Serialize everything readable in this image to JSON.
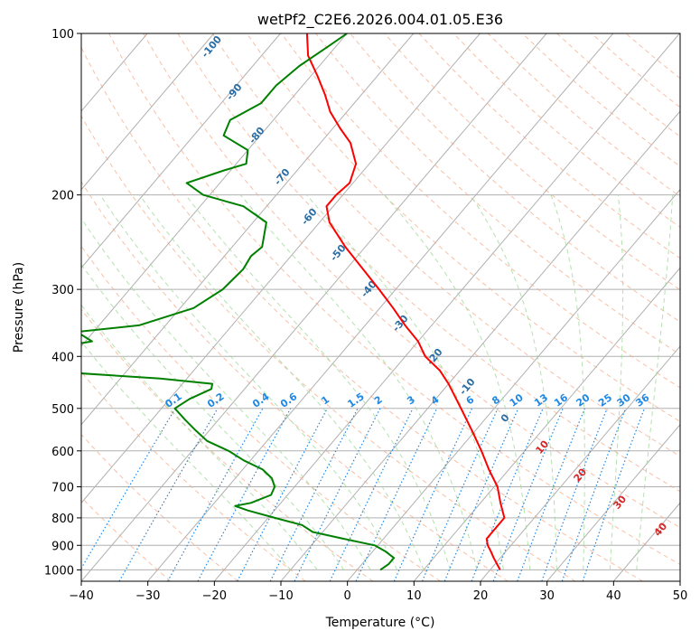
{
  "chart_data": {
    "type": "line",
    "subtype": "skew-t log-p",
    "title": "wetPf2_C2E6.2026.004.01.05.E36",
    "xlabel": "Temperature (°C)",
    "ylabel": "Pressure (hPa)",
    "xlim": [
      -40,
      50
    ],
    "ylim": [
      1050,
      100
    ],
    "y_scale": "log",
    "x_ticks": [
      "−40",
      "−30",
      "−20",
      "−10",
      "0",
      "10",
      "20",
      "30",
      "40",
      "50"
    ],
    "x_tick_values": [
      -40,
      -30,
      -20,
      -10,
      0,
      10,
      20,
      30,
      40,
      50
    ],
    "y_ticks": [
      "100",
      "200",
      "300",
      "400",
      "500",
      "600",
      "700",
      "800",
      "900",
      "1000"
    ],
    "y_tick_values": [
      100,
      200,
      300,
      400,
      500,
      600,
      700,
      800,
      900,
      1000
    ],
    "grid": true,
    "series": [
      {
        "role": "temperature",
        "color": "#ff0000",
        "p": [
          1000,
          950,
          925,
          900,
          875,
          850,
          800,
          750,
          700,
          650,
          600,
          550,
          500,
          450,
          425,
          400,
          375,
          350,
          325,
          300,
          275,
          250,
          225,
          210,
          200,
          190,
          175,
          160,
          150,
          140,
          130,
          120,
          110,
          100
        ],
        "t": [
          21.5,
          19,
          17.8,
          16.5,
          15.5,
          15.5,
          15.5,
          13,
          10.5,
          7,
          3.5,
          -0.5,
          -5,
          -10,
          -13,
          -17,
          -20,
          -24,
          -28,
          -32.5,
          -37.5,
          -43,
          -48.5,
          -51,
          -51,
          -50.5,
          -52,
          -55.5,
          -59,
          -62.5,
          -65.5,
          -69,
          -73,
          -76
        ]
      },
      {
        "role": "dewpoint",
        "color": "#008000",
        "p": [
          1000,
          975,
          950,
          925,
          900,
          875,
          850,
          825,
          800,
          775,
          760,
          750,
          725,
          700,
          675,
          650,
          625,
          600,
          575,
          550,
          525,
          500,
          480,
          460,
          450,
          440,
          420,
          400,
          390,
          375,
          360,
          350,
          325,
          300,
          275,
          260,
          250,
          225,
          210,
          200,
          190,
          180,
          175,
          165,
          155,
          145,
          135,
          125,
          115,
          105,
          100
        ],
        "t": [
          3.5,
          4,
          4,
          2,
          -0.5,
          -6,
          -11.5,
          -14,
          -19,
          -24,
          -26.5,
          -24.5,
          -22.5,
          -23,
          -24.5,
          -27,
          -31,
          -34.5,
          -39,
          -42,
          -45,
          -48,
          -47,
          -45,
          -45.5,
          -54,
          -80,
          -80,
          -76,
          -69,
          -72.5,
          -64,
          -58,
          -56,
          -55.5,
          -56,
          -55.5,
          -58,
          -63.5,
          -71,
          -75,
          -71,
          -68.5,
          -70,
          -75.5,
          -76.5,
          -74,
          -74,
          -73,
          -71,
          -70
        ]
      }
    ],
    "mixing_ratio_labels": [
      "0.1",
      "0.2",
      "0.4",
      "0.6",
      "1",
      "1.5",
      "2",
      "3",
      "4",
      "6",
      "8",
      "10",
      "13",
      "16",
      "20",
      "25",
      "30",
      "36"
    ],
    "mixing_ratio_values": [
      0.1,
      0.2,
      0.4,
      0.6,
      1,
      1.5,
      2,
      3,
      4,
      6,
      8,
      10,
      13,
      16,
      20,
      25,
      30,
      36
    ],
    "dry_adiabat_labels": [
      "-100",
      "-90",
      "-80",
      "-70",
      "-60",
      "-50",
      "-40",
      "-30",
      "-20",
      "-10",
      "0"
    ],
    "moist_adiabat_labels": [
      "10",
      "20",
      "30",
      "40"
    ],
    "colors": {
      "temperature": "#ff0000",
      "dewpoint": "#008000",
      "isotherm": "#b0b0b0",
      "dry_adiabat": "#f4a582",
      "moist_adiabat": "#a1d99b",
      "mixing_ratio": "#1e88e5",
      "isentrope": "#d9c4a8"
    }
  }
}
